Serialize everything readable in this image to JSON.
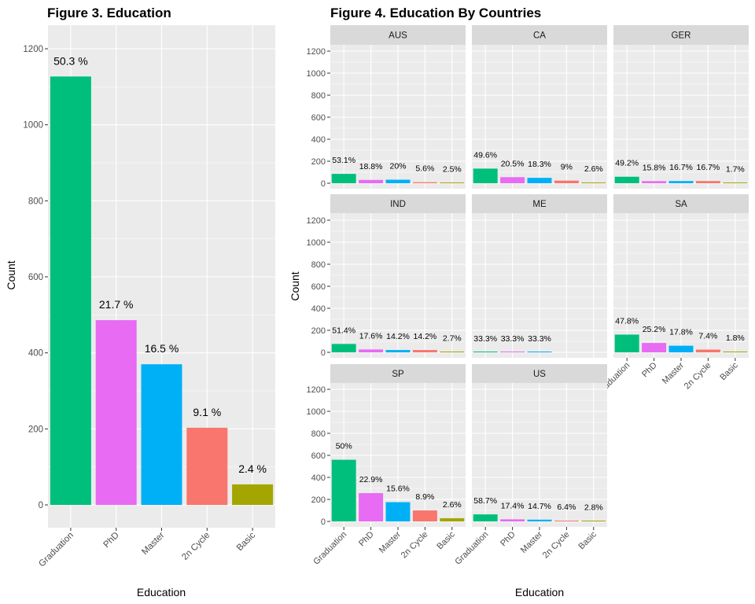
{
  "colors": {
    "Graduation": "#00BF7D",
    "PhD": "#E76BF3",
    "Master": "#00B0F6",
    "2n Cycle": "#F8766D",
    "Basic": "#A3A500",
    "panel_bg": "#EBEBEB",
    "strip_bg": "#D9D9D9",
    "grid": "#FFFFFF"
  },
  "chart_data": [
    {
      "type": "bar",
      "title": "Figure 3. Education",
      "xlabel": "Education",
      "ylabel": "Count",
      "ylim": [
        0,
        1250
      ],
      "yticks": [
        0,
        200,
        400,
        600,
        800,
        1000,
        1200
      ],
      "categories": [
        "Graduation",
        "PhD",
        "Master",
        "2n Cycle",
        "Basic"
      ],
      "values": [
        1127,
        486,
        370,
        203,
        54
      ],
      "labels": [
        "50.3 %",
        "21.7 %",
        "16.5 %",
        "9.1 %",
        "2.4 %"
      ],
      "grid": true,
      "legend": "none"
    },
    {
      "type": "bar",
      "title": "Figure 4. Education By Countries",
      "xlabel": "Education",
      "ylabel": "Count",
      "ylim": [
        0,
        1300
      ],
      "yticks": [
        0,
        200,
        400,
        600,
        800,
        1000,
        1200
      ],
      "categories": [
        "Graduation",
        "PhD",
        "Master",
        "2n Cycle",
        "Basic"
      ],
      "grid": true,
      "legend": "none",
      "facets": [
        {
          "name": "AUS",
          "values": [
            85,
            30,
            32,
            9,
            4
          ],
          "labels": [
            "53.1%",
            "18.8%",
            "20%",
            "5.6%",
            "2.5%"
          ]
        },
        {
          "name": "CA",
          "values": [
            133,
            55,
            49,
            24,
            7
          ],
          "labels": [
            "49.6%",
            "20.5%",
            "18.3%",
            "9%",
            "2.6%"
          ]
        },
        {
          "name": "GER",
          "values": [
            59,
            19,
            20,
            20,
            2
          ],
          "labels": [
            "49.2%",
            "15.8%",
            "16.7%",
            "16.7%",
            "1.7%"
          ]
        },
        {
          "name": "IND",
          "values": [
            76,
            26,
            21,
            21,
            4
          ],
          "labels": [
            "51.4%",
            "17.6%",
            "14.2%",
            "14.2%",
            "2.7%"
          ]
        },
        {
          "name": "ME",
          "values": [
            1,
            1,
            1,
            0,
            0
          ],
          "labels": [
            "33.3%",
            "33.3%",
            "33.3%",
            "",
            ""
          ]
        },
        {
          "name": "SA",
          "values": [
            161,
            85,
            60,
            25,
            6
          ],
          "labels": [
            "47.8%",
            "25.2%",
            "17.8%",
            "7.4%",
            "1.8%"
          ]
        },
        {
          "name": "SP",
          "values": [
            560,
            257,
            175,
            100,
            29
          ],
          "labels": [
            "50%",
            "22.9%",
            "15.6%",
            "8.9%",
            "2.6%"
          ]
        },
        {
          "name": "US",
          "values": [
            64,
            19,
            16,
            7,
            3
          ],
          "labels": [
            "58.7%",
            "17.4%",
            "14.7%",
            "6.4%",
            "2.8%"
          ]
        }
      ]
    }
  ]
}
